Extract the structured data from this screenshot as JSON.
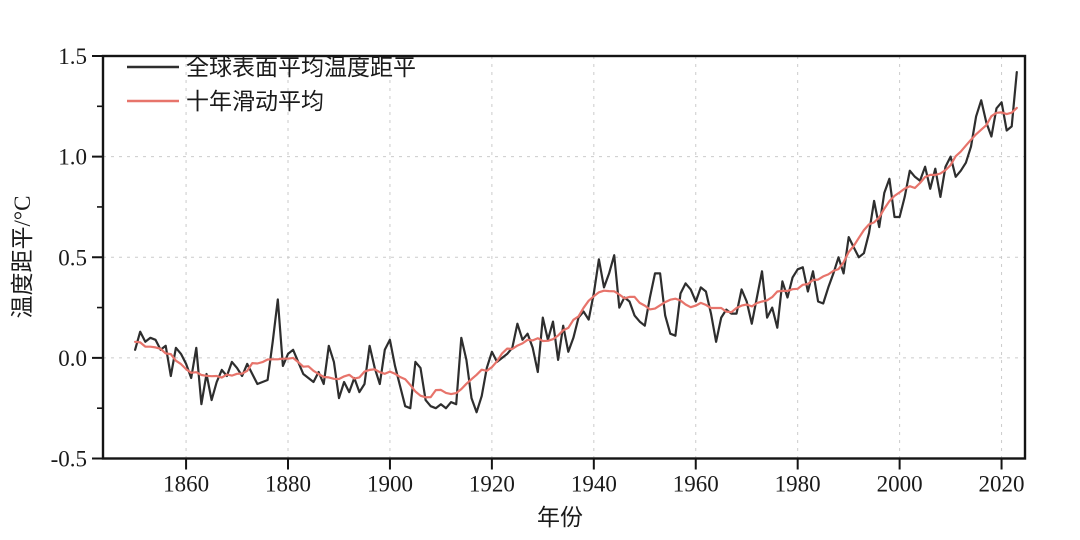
{
  "figure": {
    "background": "#ffffff",
    "axis_color": "#141414",
    "grid_color": "#cbcbcb",
    "tick_label_color": "#1a1a1a"
  },
  "chart_data": {
    "type": "line",
    "title": "",
    "xlabel": "年份",
    "ylabel": "温度距平/°C",
    "xlim": [
      1843.7,
      2024.6
    ],
    "ylim": [
      -0.5,
      1.5
    ],
    "x_ticks": [
      1860,
      1880,
      1900,
      1920,
      1940,
      1960,
      1980,
      2000,
      2020
    ],
    "y_ticks": [
      -0.5,
      0.0,
      0.5,
      1.0,
      1.5
    ],
    "y_tick_labels": [
      "-0.5",
      "0.0",
      "0.5",
      "1.0",
      "1.5"
    ],
    "y_minor_ticks": [
      -0.25,
      0.25,
      0.75,
      1.25
    ],
    "grid": {
      "major": true,
      "style": "dashed",
      "on": true
    },
    "legend_position": "top-left-inside",
    "x_start": 1850,
    "x_step": 1,
    "x_end": 2023,
    "series": [
      {
        "name": "全球表面平均温度距平",
        "color": "#2e2e2e",
        "kind": "annual",
        "values": [
          0.04,
          0.13,
          0.08,
          0.1,
          0.09,
          0.04,
          0.06,
          -0.09,
          0.05,
          0.02,
          -0.03,
          -0.1,
          0.05,
          -0.23,
          -0.08,
          -0.21,
          -0.12,
          -0.06,
          -0.09,
          -0.02,
          -0.05,
          -0.09,
          -0.03,
          -0.08,
          -0.13,
          -0.12,
          -0.11,
          0.08,
          0.29,
          -0.04,
          0.02,
          0.04,
          -0.02,
          -0.08,
          -0.1,
          -0.12,
          -0.07,
          -0.13,
          0.06,
          -0.02,
          -0.2,
          -0.12,
          -0.17,
          -0.1,
          -0.17,
          -0.13,
          0.06,
          -0.05,
          -0.13,
          0.04,
          0.09,
          -0.04,
          -0.14,
          -0.24,
          -0.25,
          -0.02,
          -0.05,
          -0.21,
          -0.24,
          -0.25,
          -0.23,
          -0.25,
          -0.22,
          -0.23,
          0.1,
          -0.01,
          -0.2,
          -0.27,
          -0.19,
          -0.05,
          0.03,
          -0.02,
          0.0,
          0.02,
          0.05,
          0.17,
          0.09,
          0.12,
          0.05,
          -0.07,
          0.2,
          0.09,
          0.18,
          -0.01,
          0.16,
          0.03,
          0.1,
          0.2,
          0.23,
          0.19,
          0.32,
          0.49,
          0.35,
          0.42,
          0.51,
          0.25,
          0.3,
          0.28,
          0.21,
          0.18,
          0.16,
          0.3,
          0.42,
          0.42,
          0.21,
          0.12,
          0.11,
          0.32,
          0.37,
          0.34,
          0.28,
          0.35,
          0.33,
          0.22,
          0.08,
          0.2,
          0.24,
          0.22,
          0.22,
          0.34,
          0.28,
          0.17,
          0.3,
          0.43,
          0.2,
          0.25,
          0.15,
          0.38,
          0.3,
          0.4,
          0.44,
          0.45,
          0.33,
          0.43,
          0.28,
          0.27,
          0.35,
          0.42,
          0.5,
          0.42,
          0.6,
          0.55,
          0.5,
          0.52,
          0.62,
          0.78,
          0.65,
          0.82,
          0.89,
          0.7,
          0.7,
          0.8,
          0.93,
          0.9,
          0.88,
          0.95,
          0.84,
          0.94,
          0.8,
          0.95,
          1.0,
          0.9,
          0.93,
          0.97,
          1.05,
          1.2,
          1.28,
          1.17,
          1.1,
          1.24,
          1.27,
          1.13,
          1.15,
          1.42
        ]
      },
      {
        "name": "十年滑动平均",
        "color": "#e7746b",
        "kind": "moving_average",
        "window": 10,
        "derived_from": "annual"
      }
    ]
  }
}
